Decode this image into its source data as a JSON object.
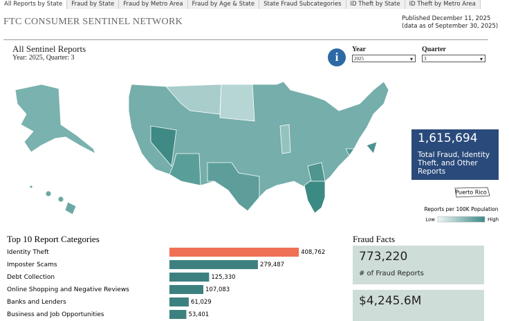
{
  "tabs": [
    "All Reports by State",
    "Fraud by State",
    "Fraud by Metro Area",
    "Fraud by Age & State",
    "State Fraud Subcategories",
    "ID Theft by State",
    "ID Theft by Metro Area"
  ],
  "header": {
    "title": "FTC CONSUMER SENTINEL NETWORK",
    "published": "Published December 11, 2025",
    "data_as_of": "(data as of September 30, 2025)"
  },
  "map_panel": {
    "title": "All Sentinel Reports",
    "subtitle": "Year: 2025, Quarter: 3",
    "year_label": "Year",
    "year_value": "2025",
    "quarter_label": "Quarter",
    "quarter_value": "3",
    "total": {
      "value": "1,615,694",
      "label": "Total Fraud, Identity Theft, and Other Reports"
    },
    "territory": "Puerto Rico",
    "legend": {
      "title": "Reports per 100K Population",
      "low": "Low",
      "high": "High"
    }
  },
  "chart_data": {
    "type": "bar",
    "title": "Top 10 Report Categories",
    "categories": [
      "Identity Theft",
      "Imposter Scams",
      "Debt Collection",
      "Online Shopping and Negative Reviews",
      "Banks and Lenders",
      "Business and Job Opportunities"
    ],
    "values": [
      408762,
      279487,
      125330,
      107083,
      61029,
      53401
    ],
    "value_labels": [
      "408,762",
      "279,487",
      "125,330",
      "107,083",
      "61,029",
      "53,401"
    ],
    "colors": [
      "#f07055",
      "#3d8080",
      "#3d8080",
      "#3d8080",
      "#3d8080",
      "#3d8080"
    ],
    "xlim": [
      0,
      450000
    ]
  },
  "fraud_facts": {
    "title": "Fraud Facts",
    "items": [
      {
        "value": "773,220",
        "label": "# of Fraud Reports"
      },
      {
        "value": "$4,245.6M"
      }
    ]
  }
}
